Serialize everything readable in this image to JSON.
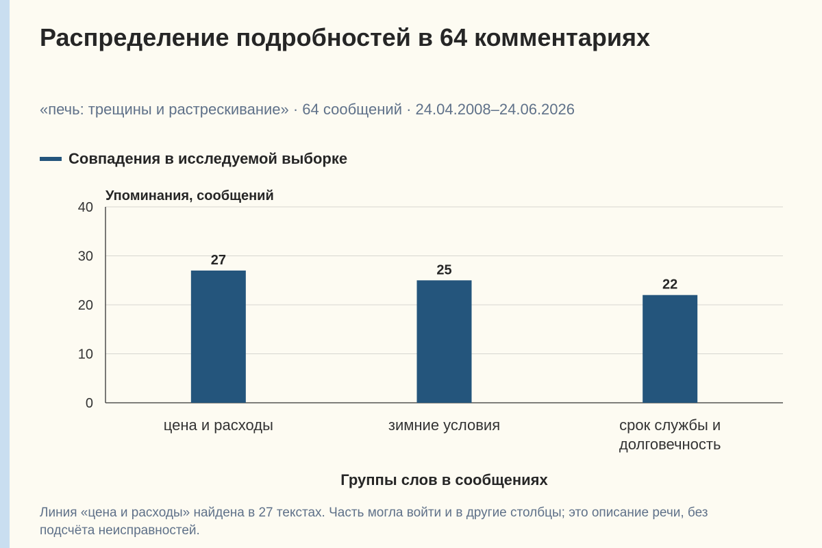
{
  "title": "Распределение подробностей в 64 комментариях",
  "subtitle": "«печь: трещины и растрескивание» · 64 сообщений · 24.04.2008–24.06.2026",
  "legend": {
    "label": "Совпадения в исследуемой выборке",
    "color": "#24557c"
  },
  "footnote": "Линия «цена и расходы» найдена в 27 текстах. Часть могла войти и в другие столбцы; это описание речи, без подсчёта неисправностей.",
  "chart_data": {
    "type": "bar",
    "title": "Распределение подробностей в 64 комментариях",
    "ylabel": "Упоминания, сообщений",
    "xlabel": "Группы слов в сообщениях",
    "categories": [
      [
        "цена и расходы"
      ],
      [
        "зимние условия"
      ],
      [
        "срок службы и",
        "долговечность"
      ]
    ],
    "series": [
      {
        "name": "Совпадения в исследуемой выборке",
        "values": [
          27,
          25,
          22
        ],
        "color": "#24557c"
      }
    ],
    "ylim": [
      0,
      40
    ],
    "yticks": [
      0,
      10,
      20,
      30,
      40
    ],
    "grid": true,
    "legend_position": "top-left",
    "data_labels": true
  }
}
